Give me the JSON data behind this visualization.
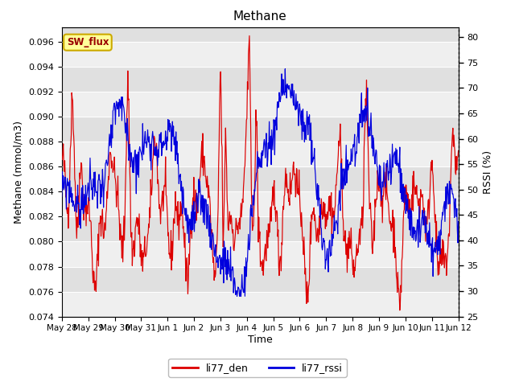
{
  "title": "Methane",
  "xlabel": "Time",
  "ylabel_left": "Methane (mmol/m3)",
  "ylabel_right": "RSSI (%)",
  "ylim_left": [
    0.074,
    0.0972
  ],
  "ylim_right": [
    25,
    82
  ],
  "yticks_left": [
    0.074,
    0.076,
    0.078,
    0.08,
    0.082,
    0.084,
    0.086,
    0.088,
    0.09,
    0.092,
    0.094,
    0.096
  ],
  "yticks_right": [
    25,
    30,
    35,
    40,
    45,
    50,
    55,
    60,
    65,
    70,
    75,
    80
  ],
  "xtick_labels": [
    "May 28",
    "May 29",
    "May 30",
    "May 31",
    "Jun 1",
    "Jun 2",
    "Jun 3",
    "Jun 4",
    "Jun 5",
    "Jun 6",
    "Jun 7",
    "Jun 8",
    "Jun 9",
    "Jun 10",
    "Jun 11",
    "Jun 12"
  ],
  "color_red": "#dd0000",
  "color_blue": "#0000dd",
  "bg_light": "#efefef",
  "bg_dark": "#e0e0e0",
  "legend_label_red": "li77_den",
  "legend_label_blue": "li77_rssi",
  "annotation_text": "SW_flux",
  "annotation_bg": "#ffff99",
  "annotation_border": "#ccaa00",
  "n_points": 800
}
